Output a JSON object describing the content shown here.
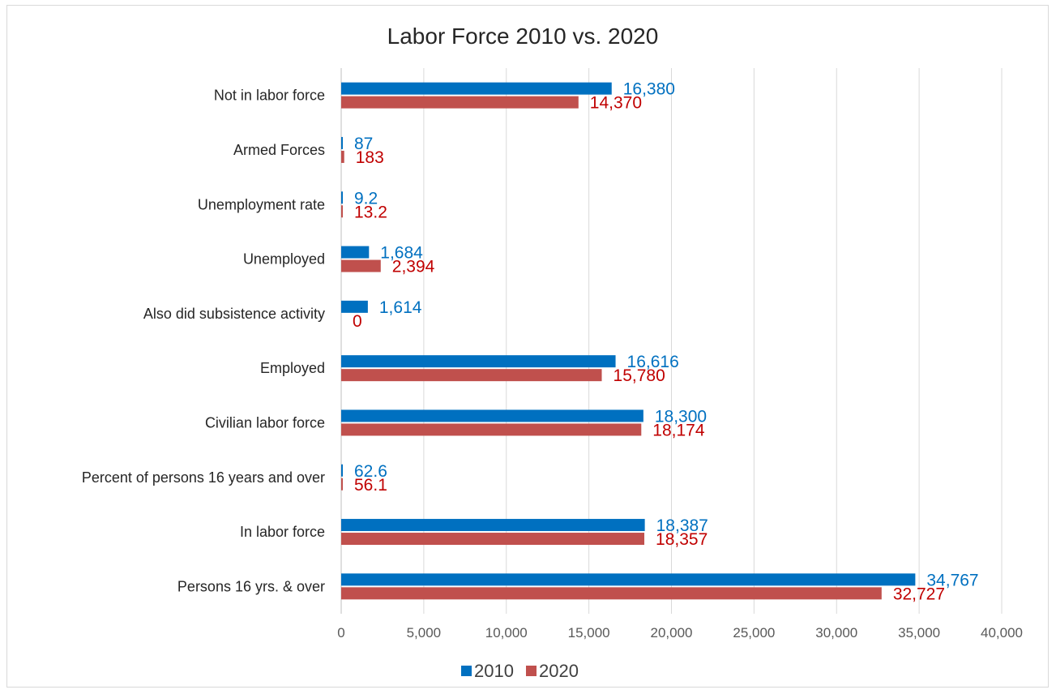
{
  "chart_data": {
    "type": "bar",
    "orientation": "horizontal",
    "title": "Labor Force 2010 vs. 2020",
    "categories": [
      "Persons 16 yrs. & over",
      "In labor force",
      "Percent of persons 16 years and over",
      "Civilian labor force",
      "Employed",
      "Also did subsistence activity",
      "Unemployed",
      "Unemployment rate",
      "Armed Forces",
      "Not in labor force"
    ],
    "series": [
      {
        "name": "2010",
        "color": "#0070c0",
        "values": [
          34767,
          18387,
          62.6,
          18300,
          16616,
          1614,
          1684,
          9.2,
          87,
          16380
        ],
        "labels": [
          "34,767",
          "18,387",
          "62.6",
          "18,300",
          "16,616",
          "1,614",
          "1,684",
          "9.2",
          "87",
          "16,380"
        ]
      },
      {
        "name": "2020",
        "color": "#c0504d",
        "label_color": "#c00000",
        "values": [
          32727,
          18357,
          56.1,
          18174,
          15780,
          0,
          2394,
          13.2,
          183,
          14370
        ],
        "labels": [
          "32,727",
          "18,357",
          "56.1",
          "18,174",
          "15,780",
          "0",
          "2,394",
          "13.2",
          "183",
          "14,370"
        ]
      }
    ],
    "x_ticks": [
      "0",
      "5,000",
      "10,000",
      "15,000",
      "20,000",
      "25,000",
      "30,000",
      "35,000",
      "40,000"
    ],
    "xlim": [
      0,
      40000
    ],
    "grid": true,
    "legend": "bottom"
  }
}
